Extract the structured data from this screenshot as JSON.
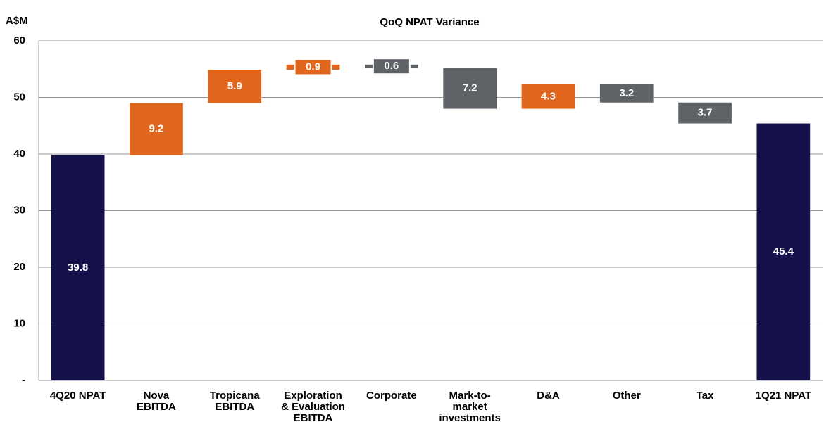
{
  "chart_data": {
    "type": "waterfall",
    "title": "QoQ NPAT Variance",
    "y_label": "A$M",
    "categories": [
      "4Q20 NPAT",
      "Nova\nEBITDA",
      "Tropicana\nEBITDA",
      "Exploration\n& Evaluation\nEBITDA",
      "Corporate",
      "Mark-to-\nmarket\ninvestments",
      "D&A",
      "Other",
      "Tax",
      "1Q21 NPAT"
    ],
    "values": [
      39.8,
      9.2,
      5.9,
      0.9,
      -0.6,
      -7.2,
      4.3,
      -3.2,
      -3.7,
      45.4
    ],
    "value_labels": [
      "39.8",
      "9.2",
      "5.9",
      "0.9",
      "0.6",
      "7.2",
      "4.3",
      "3.2",
      "3.7",
      "45.4"
    ],
    "measure": [
      "absolute",
      "relative",
      "relative",
      "relative",
      "relative",
      "relative",
      "relative",
      "relative",
      "relative",
      "total"
    ],
    "colors": [
      "#14104a",
      "#e0661e",
      "#e0661e",
      "#e0661e",
      "#5f6266",
      "#5f6266",
      "#e0661e",
      "#5f6266",
      "#5f6266",
      "#14104a"
    ],
    "ylim": [
      0,
      60
    ],
    "yticks": [
      {
        "value": 0,
        "label": "-"
      },
      10,
      20,
      30,
      40,
      50,
      60
    ],
    "grid": true
  }
}
